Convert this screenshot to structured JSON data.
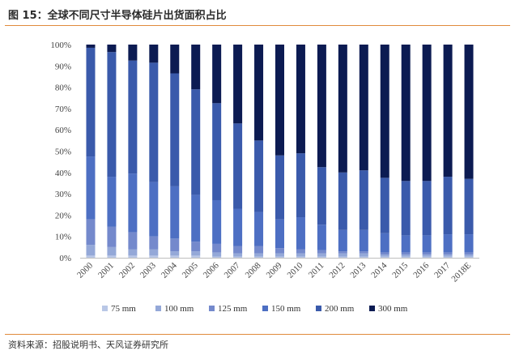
{
  "header": {
    "title": "图 15：全球不同尺寸半导体硅片出货面积占比"
  },
  "footer": {
    "source": "资料来源：招股说明书、天风证券研究所"
  },
  "colors": {
    "accent": "#e08a3c"
  },
  "chart_data": {
    "type": "bar",
    "stacked": true,
    "categories": [
      "2000",
      "2001",
      "2002",
      "2003",
      "2004",
      "2005",
      "2006",
      "2007",
      "2008",
      "2009",
      "2010",
      "2011",
      "2012",
      "2013",
      "2014",
      "2015",
      "2016",
      "2017",
      "2018E"
    ],
    "yticks": [
      "0%",
      "10%",
      "20%",
      "30%",
      "40%",
      "50%",
      "60%",
      "70%",
      "80%",
      "90%",
      "100%"
    ],
    "ylim": [
      0,
      100
    ],
    "legend_position": "bottom",
    "series": [
      {
        "name": "75 mm",
        "color": "#b9c7e6",
        "values": [
          1,
          1,
          1,
          1,
          1,
          1,
          0.5,
          0.5,
          0.5,
          0.5,
          0.5,
          0.5,
          0.5,
          0.5,
          0.5,
          0.5,
          0.5,
          0.5,
          0.5
        ]
      },
      {
        "name": "100 mm",
        "color": "#94a8d8",
        "values": [
          5,
          4,
          3,
          3,
          2,
          2,
          2,
          1.5,
          1.5,
          1.5,
          1.5,
          1.5,
          1.5,
          1.5,
          1,
          1,
          1,
          1,
          1
        ]
      },
      {
        "name": "125 mm",
        "color": "#7489cc",
        "values": [
          12,
          9.5,
          8,
          6,
          6,
          4.5,
          4,
          3.5,
          3.5,
          2.5,
          2,
          1.5,
          1,
          1,
          1,
          1,
          1,
          1,
          1
        ]
      },
      {
        "name": "150 mm",
        "color": "#4d6fc3",
        "values": [
          29.5,
          23.5,
          27.5,
          25.5,
          24.5,
          22,
          20.5,
          17.5,
          16,
          13.5,
          15,
          12,
          10,
          10,
          9,
          8,
          8,
          8.5,
          8.5
        ]
      },
      {
        "name": "200 mm",
        "color": "#3a5aab",
        "values": [
          51,
          58.5,
          53,
          56,
          53,
          49.5,
          45.5,
          40,
          33.5,
          30,
          30,
          27,
          27,
          28,
          26,
          25.5,
          25.5,
          27,
          26
        ]
      },
      {
        "name": "300 mm",
        "color": "#0c1b52",
        "values": [
          1.5,
          3.5,
          7.5,
          8.5,
          13.5,
          21,
          27.5,
          37,
          45,
          52,
          51,
          57.5,
          60,
          59,
          62.5,
          64,
          64,
          62,
          63
        ]
      }
    ]
  }
}
